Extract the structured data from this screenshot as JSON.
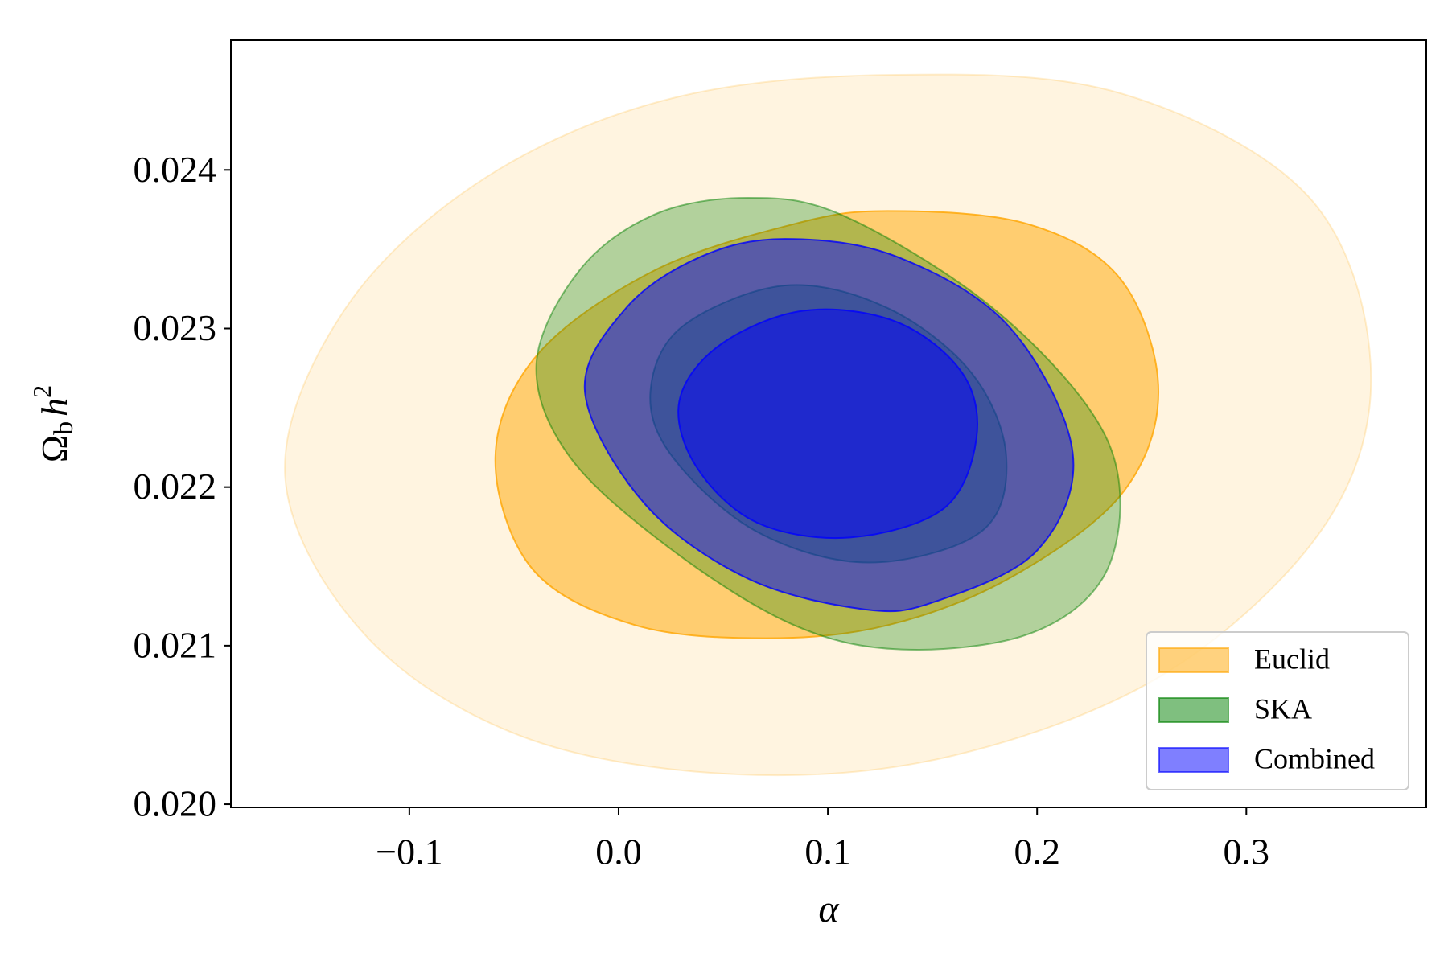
{
  "chart_data": {
    "type": "contour",
    "xlabel": "α",
    "ylabel": {
      "base": "Ω",
      "sub": "b",
      "var": "h",
      "sup": "2"
    },
    "xlim": [
      -0.1853,
      0.386
    ],
    "ylim": [
      0.01998,
      0.024818
    ],
    "xticks": [
      {
        "value": -0.1,
        "label": "−0.1"
      },
      {
        "value": 0,
        "label": "0.0"
      },
      0.1,
      0.2,
      0.3
    ],
    "yticks": [
      {
        "value": 0.02,
        "label": "0.020"
      },
      0.021,
      0.022,
      0.023,
      0.024
    ],
    "legend": "lower right",
    "series": [
      {
        "name": "Euclid",
        "color": "#ffa500",
        "fill_opacity": [
          0.12,
          0.5
        ],
        "contours": [
          {
            "x": [
              -0.1594,
              -0.1304,
              -0.0634,
              0.0259,
              0.133,
              0.2402,
              0.3295,
              0.3594,
              0.3384,
              0.2625,
              0.1598,
              0.0571,
              -0.0455,
              -0.1214
            ],
            "y": [
              0.022071,
              0.023129,
              0.023953,
              0.024453,
              0.0246,
              0.024482,
              0.023835,
              0.022776,
              0.021776,
              0.020835,
              0.020306,
              0.020188,
              0.020424,
              0.021071
            ]
          },
          {
            "x": [
              -0.0589,
              -0.0388,
              0.017,
              0.0839,
              0.1286,
              0.1955,
              0.2402,
              0.258,
              0.2402,
              0.1866,
              0.1286,
              0.0705,
              0.008,
              -0.0411
            ],
            "y": [
              0.022188,
              0.022835,
              0.023365,
              0.023659,
              0.023741,
              0.023659,
              0.023306,
              0.0226,
              0.021953,
              0.021424,
              0.021129,
              0.021047,
              0.021129,
              0.021482
            ]
          }
        ]
      },
      {
        "name": "SKA",
        "color": "#008000",
        "fill_opacity": [
          0.3,
          0.3
        ],
        "contours": [
          {
            "x": [
              -0.0393,
              -0.0188,
              0.017,
              0.0616,
              0.1063,
              0.1732,
              0.2223,
              0.2393,
              0.2313,
              0.1955,
              0.1353,
              0.0839,
              0.0259,
              -0.0232
            ],
            "y": [
              0.022776,
              0.023365,
              0.023718,
              0.023824,
              0.023718,
              0.023188,
              0.022541,
              0.022012,
              0.021424,
              0.021071,
              0.020976,
              0.021129,
              0.0216,
              0.022188
            ]
          },
          {
            "x": [
              0.0152,
              0.0304,
              0.0795,
              0.1286,
              0.1688,
              0.1853,
              0.1732,
              0.1196,
              0.0661,
              0.0259
            ],
            "y": [
              0.0226,
              0.023012,
              0.023271,
              0.023129,
              0.022718,
              0.022188,
              0.021718,
              0.021524,
              0.021718,
              0.022188
            ]
          }
        ]
      },
      {
        "name": "Combined",
        "color": "#0000ff",
        "fill_opacity": [
          0.5,
          0.5
        ],
        "contours": [
          {
            "x": [
              -0.0161,
              0.0036,
              0.0393,
              0.0795,
              0.133,
              0.1866,
              0.217,
              0.2,
              0.1509,
              0.1174,
              0.0616,
              0.0125
            ],
            "y": [
              0.0226,
              0.023129,
              0.023453,
              0.023565,
              0.023453,
              0.023012,
              0.022218,
              0.0216,
              0.021276,
              0.021229,
              0.021424,
              0.021894
            ]
          },
          {
            "x": [
              0.029,
              0.0482,
              0.0884,
              0.133,
              0.1643,
              0.171,
              0.1554,
              0.1107,
              0.0661,
              0.0371
            ],
            "y": [
              0.022541,
              0.022894,
              0.023112,
              0.023041,
              0.022718,
              0.022306,
              0.021865,
              0.021682,
              0.021776,
              0.022129
            ]
          }
        ]
      }
    ]
  }
}
